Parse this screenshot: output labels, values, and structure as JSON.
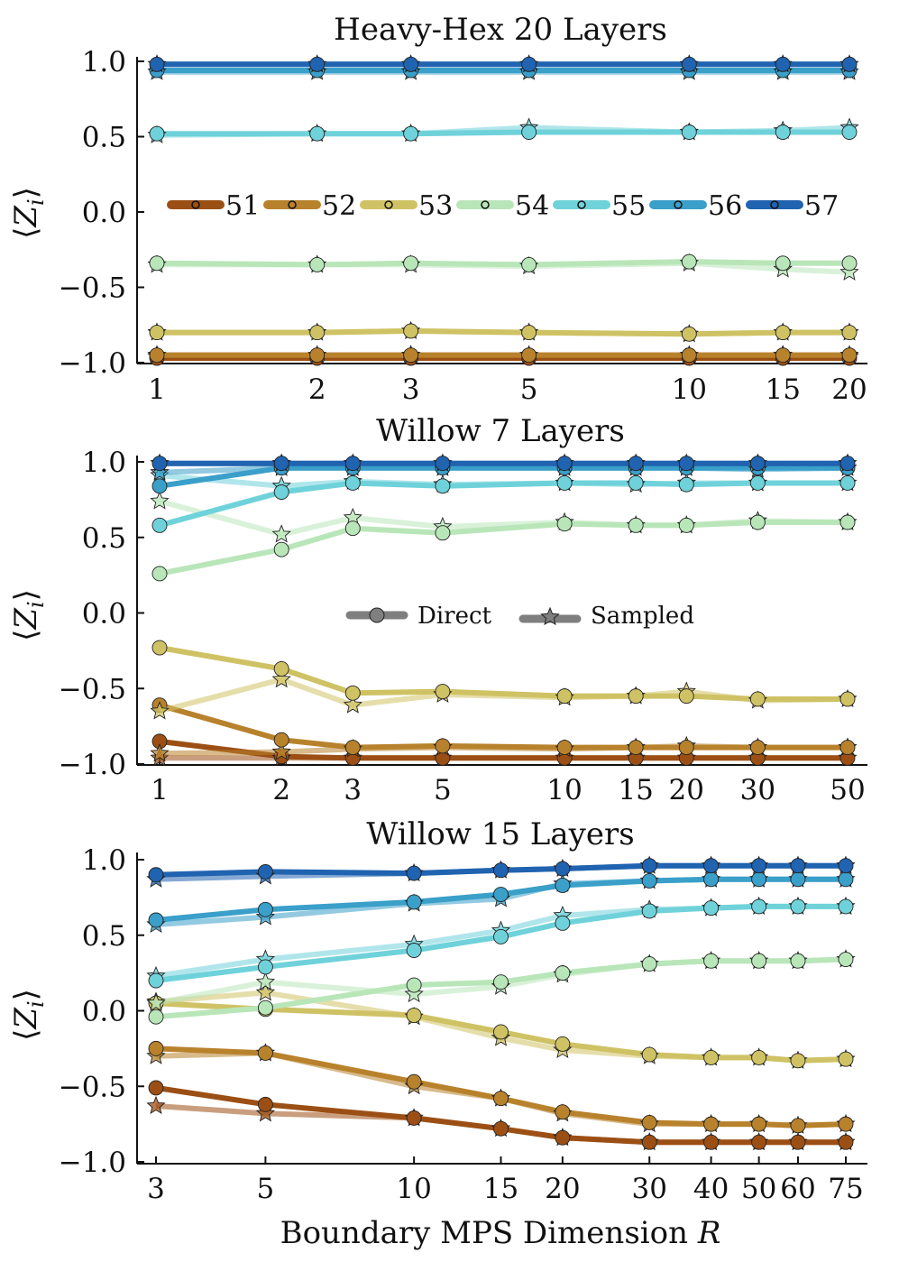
{
  "colors": {
    "51": "#9c4f14",
    "52": "#b8822c",
    "53": "#cfc264",
    "54": "#b9e6b9",
    "55": "#6fd2da",
    "56": "#3a9fc9",
    "57": "#2063b0"
  },
  "ylabel_main": "Z",
  "ylabel_sub": "i",
  "ylabel_open": "⟨",
  "ylabel_close": "⟩",
  "xlabel_text": "Boundary MPS Dimension ",
  "xlabel_var": "R",
  "legend_sites": [
    "51",
    "52",
    "53",
    "54",
    "55",
    "56",
    "57"
  ],
  "legend_methods": {
    "direct": "Direct",
    "sampled": "Sampled"
  },
  "chart_data": [
    {
      "type": "line",
      "title": "Heavy-Hex 20 Layers",
      "xscale": "log",
      "x": [
        1,
        2,
        3,
        5,
        10,
        15,
        20
      ],
      "x_tick_labels": [
        "1",
        "2",
        "3",
        "5",
        "10",
        "15",
        "20"
      ],
      "ylim": [
        -1.0,
        1.0
      ],
      "y_ticks": [
        1.0,
        0.5,
        0.0,
        -0.5,
        -1.0
      ],
      "y_tick_labels": [
        "1.0",
        "0.5",
        "0.0",
        "−0.5",
        "−1.0"
      ],
      "series": [
        {
          "name": "51",
          "direct": [
            -0.97,
            -0.97,
            -0.97,
            -0.97,
            -0.97,
            -0.97,
            -0.97
          ],
          "sampled": [
            -0.96,
            -0.96,
            -0.95,
            -0.96,
            -0.96,
            -0.95,
            -0.96
          ]
        },
        {
          "name": "52",
          "direct": [
            -0.95,
            -0.95,
            -0.95,
            -0.95,
            -0.95,
            -0.95,
            -0.95
          ],
          "sampled": [
            -0.95,
            -0.95,
            -0.95,
            -0.95,
            -0.95,
            -0.95,
            -0.95
          ]
        },
        {
          "name": "53",
          "direct": [
            -0.8,
            -0.8,
            -0.79,
            -0.8,
            -0.81,
            -0.8,
            -0.8
          ],
          "sampled": [
            -0.8,
            -0.8,
            -0.79,
            -0.8,
            -0.81,
            -0.8,
            -0.8
          ]
        },
        {
          "name": "54",
          "direct": [
            -0.34,
            -0.35,
            -0.34,
            -0.35,
            -0.33,
            -0.34,
            -0.34
          ],
          "sampled": [
            -0.35,
            -0.35,
            -0.35,
            -0.36,
            -0.34,
            -0.38,
            -0.4
          ]
        },
        {
          "name": "55",
          "direct": [
            0.52,
            0.52,
            0.52,
            0.53,
            0.53,
            0.53,
            0.53
          ],
          "sampled": [
            0.51,
            0.52,
            0.52,
            0.56,
            0.53,
            0.54,
            0.56
          ]
        },
        {
          "name": "56",
          "direct": [
            0.94,
            0.94,
            0.94,
            0.94,
            0.94,
            0.94,
            0.94
          ],
          "sampled": [
            0.93,
            0.93,
            0.93,
            0.93,
            0.93,
            0.93,
            0.93
          ]
        },
        {
          "name": "57",
          "direct": [
            0.98,
            0.98,
            0.98,
            0.98,
            0.98,
            0.98,
            0.98
          ],
          "sampled": [
            0.98,
            0.98,
            0.98,
            0.98,
            0.98,
            0.98,
            0.98
          ]
        }
      ]
    },
    {
      "type": "line",
      "title": "Willow 7 Layers",
      "xscale": "log",
      "x": [
        1,
        2,
        3,
        5,
        10,
        15,
        20,
        30,
        50
      ],
      "x_tick_labels": [
        "1",
        "2",
        "3",
        "5",
        "10",
        "15",
        "20",
        "30",
        "50"
      ],
      "ylim": [
        -1.0,
        1.0
      ],
      "y_ticks": [
        1.0,
        0.5,
        0.0,
        -0.5,
        -1.0
      ],
      "y_tick_labels": [
        "1.0",
        "0.5",
        "0.0",
        "−0.5",
        "−1.0"
      ],
      "series": [
        {
          "name": "51",
          "direct": [
            -0.85,
            -0.95,
            -0.96,
            -0.96,
            -0.96,
            -0.96,
            -0.96,
            -0.96,
            -0.96
          ],
          "sampled": [
            -0.96,
            -0.96,
            -0.96,
            -0.96,
            -0.96,
            -0.96,
            -0.96,
            -0.96,
            -0.96
          ]
        },
        {
          "name": "52",
          "direct": [
            -0.61,
            -0.84,
            -0.89,
            -0.88,
            -0.89,
            -0.89,
            -0.89,
            -0.89,
            -0.89
          ],
          "sampled": [
            -0.93,
            -0.92,
            -0.9,
            -0.89,
            -0.9,
            -0.89,
            -0.88,
            -0.89,
            -0.89
          ]
        },
        {
          "name": "53",
          "direct": [
            -0.23,
            -0.37,
            -0.53,
            -0.52,
            -0.55,
            -0.55,
            -0.55,
            -0.57,
            -0.57
          ],
          "sampled": [
            -0.65,
            -0.44,
            -0.61,
            -0.54,
            -0.56,
            -0.55,
            -0.52,
            -0.58,
            -0.57
          ]
        },
        {
          "name": "54",
          "direct": [
            0.26,
            0.42,
            0.56,
            0.53,
            0.59,
            0.58,
            0.58,
            0.6,
            0.6
          ],
          "sampled": [
            0.74,
            0.52,
            0.63,
            0.57,
            0.6,
            0.58,
            0.58,
            0.61,
            0.6
          ]
        },
        {
          "name": "55",
          "direct": [
            0.58,
            0.8,
            0.86,
            0.84,
            0.86,
            0.86,
            0.85,
            0.86,
            0.86
          ],
          "sampled": [
            0.91,
            0.84,
            0.87,
            0.85,
            0.86,
            0.85,
            0.86,
            0.86,
            0.86
          ]
        },
        {
          "name": "56",
          "direct": [
            0.84,
            0.96,
            0.96,
            0.96,
            0.96,
            0.96,
            0.96,
            0.96,
            0.96
          ],
          "sampled": [
            0.93,
            0.96,
            0.96,
            0.96,
            0.96,
            0.96,
            0.96,
            0.95,
            0.96
          ]
        },
        {
          "name": "57",
          "direct": [
            0.99,
            0.99,
            0.99,
            0.99,
            0.99,
            0.99,
            0.99,
            0.99,
            0.99
          ],
          "sampled": [
            0.99,
            0.99,
            0.99,
            0.99,
            0.99,
            0.99,
            0.99,
            0.99,
            0.99
          ]
        }
      ]
    },
    {
      "type": "line",
      "title": "Willow 15 Layers",
      "xscale": "log",
      "x": [
        3,
        5,
        10,
        15,
        20,
        30,
        40,
        50,
        60,
        75
      ],
      "x_tick_labels": [
        "3",
        "5",
        "10",
        "15",
        "20",
        "30",
        "40",
        "50",
        "60",
        "75"
      ],
      "ylim": [
        -1.0,
        1.0
      ],
      "y_ticks": [
        1.0,
        0.5,
        0.0,
        -0.5,
        -1.0
      ],
      "y_tick_labels": [
        "1.0",
        "0.5",
        "0.0",
        "−0.5",
        "−1.0"
      ],
      "series": [
        {
          "name": "51",
          "direct": [
            -0.51,
            -0.62,
            -0.71,
            -0.78,
            -0.84,
            -0.87,
            -0.87,
            -0.87,
            -0.87,
            -0.87
          ],
          "sampled": [
            -0.63,
            -0.68,
            -0.71,
            -0.78,
            -0.84,
            -0.87,
            -0.87,
            -0.87,
            -0.87,
            -0.87
          ]
        },
        {
          "name": "52",
          "direct": [
            -0.25,
            -0.28,
            -0.47,
            -0.58,
            -0.67,
            -0.74,
            -0.75,
            -0.75,
            -0.76,
            -0.75
          ],
          "sampled": [
            -0.3,
            -0.28,
            -0.5,
            -0.58,
            -0.68,
            -0.75,
            -0.75,
            -0.75,
            -0.76,
            -0.75
          ]
        },
        {
          "name": "53",
          "direct": [
            0.05,
            0.01,
            -0.03,
            -0.14,
            -0.22,
            -0.29,
            -0.31,
            -0.31,
            -0.33,
            -0.32
          ],
          "sampled": [
            0.06,
            0.12,
            -0.04,
            -0.18,
            -0.26,
            -0.3,
            -0.31,
            -0.31,
            -0.33,
            -0.32
          ]
        },
        {
          "name": "54",
          "direct": [
            -0.04,
            0.02,
            0.17,
            0.19,
            0.25,
            0.31,
            0.33,
            0.33,
            0.33,
            0.34
          ],
          "sampled": [
            0.05,
            0.19,
            0.11,
            0.16,
            0.24,
            0.31,
            0.33,
            0.33,
            0.33,
            0.34
          ]
        },
        {
          "name": "55",
          "direct": [
            0.2,
            0.29,
            0.4,
            0.49,
            0.58,
            0.66,
            0.68,
            0.69,
            0.69,
            0.69
          ],
          "sampled": [
            0.23,
            0.34,
            0.44,
            0.53,
            0.63,
            0.67,
            0.68,
            0.69,
            0.69,
            0.69
          ]
        },
        {
          "name": "56",
          "direct": [
            0.6,
            0.67,
            0.72,
            0.77,
            0.83,
            0.86,
            0.87,
            0.87,
            0.87,
            0.87
          ],
          "sampled": [
            0.57,
            0.62,
            0.71,
            0.74,
            0.84,
            0.86,
            0.87,
            0.87,
            0.87,
            0.87
          ]
        },
        {
          "name": "57",
          "direct": [
            0.9,
            0.92,
            0.91,
            0.93,
            0.94,
            0.96,
            0.96,
            0.96,
            0.96,
            0.96
          ],
          "sampled": [
            0.87,
            0.89,
            0.91,
            0.93,
            0.94,
            0.96,
            0.96,
            0.96,
            0.96,
            0.96
          ]
        }
      ]
    }
  ]
}
